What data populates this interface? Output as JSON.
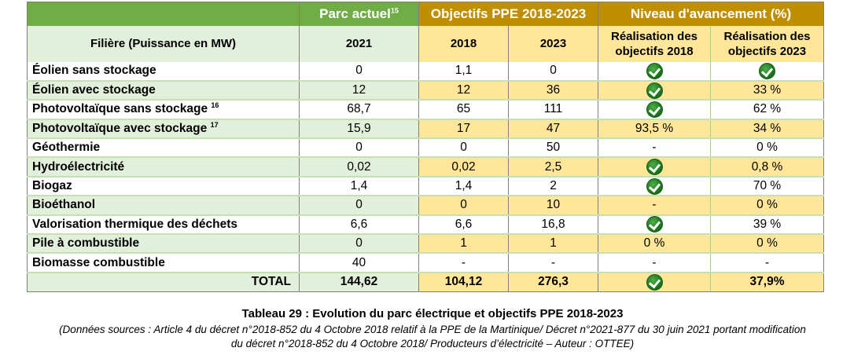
{
  "table": {
    "header_groups": {
      "parc_actuel": "Parc actuel",
      "parc_actuel_sup": "15",
      "objectifs": "Objectifs PPE 2018-2023",
      "niveau": "Niveau d'avancement (%)"
    },
    "subheaders": {
      "filiere": "Filière (Puissance en MW)",
      "y2021": "2021",
      "y2018": "2018",
      "y2023": "2023",
      "real2018_line1": "Réalisation des",
      "real2018_line2": "objectifs 2018",
      "real2023_line1": "Réalisation des",
      "real2023_line2": "objectifs 2023"
    },
    "rows": [
      {
        "name": "Éolien sans stockage",
        "sup": "",
        "v2021": "0",
        "obj2018": "1,1",
        "obj2023": "0",
        "real2018": "check",
        "real2023": "check"
      },
      {
        "name": "Éolien avec stockage",
        "sup": "",
        "v2021": "12",
        "obj2018": "12",
        "obj2023": "36",
        "real2018": "check",
        "real2023": "33 %"
      },
      {
        "name": "Photovoltaïque sans stockage",
        "sup": "16",
        "v2021": "68,7",
        "obj2018": "65",
        "obj2023": "111",
        "real2018": "check",
        "real2023": "62 %"
      },
      {
        "name": "Photovoltaïque avec stockage",
        "sup": "17",
        "v2021": "15,9",
        "obj2018": "17",
        "obj2023": "47",
        "real2018": "93,5 %",
        "real2023": "34 %"
      },
      {
        "name": "Géothermie",
        "sup": "",
        "v2021": "0",
        "obj2018": "0",
        "obj2023": "50",
        "real2018": "-",
        "real2023": "0 %"
      },
      {
        "name": "Hydroélectricité",
        "sup": "",
        "v2021": "0,02",
        "obj2018": "0,02",
        "obj2023": "2,5",
        "real2018": "check",
        "real2023": "0,8 %"
      },
      {
        "name": "Biogaz",
        "sup": "",
        "v2021": "1,4",
        "obj2018": "1,4",
        "obj2023": "2",
        "real2018": "check",
        "real2023": "70 %"
      },
      {
        "name": "Bioéthanol",
        "sup": "",
        "v2021": "0",
        "obj2018": "0",
        "obj2023": "10",
        "real2018": "-",
        "real2023": "0 %"
      },
      {
        "name": "Valorisation thermique des déchets",
        "sup": "",
        "v2021": "6,6",
        "obj2018": "6,6",
        "obj2023": "16,8",
        "real2018": "check",
        "real2023": "39 %"
      },
      {
        "name": "Pile à combustible",
        "sup": "",
        "v2021": "0",
        "obj2018": "1",
        "obj2023": "1",
        "real2018": "0 %",
        "real2023": "0 %"
      },
      {
        "name": "Biomasse combustible",
        "sup": "",
        "v2021": "40",
        "obj2018": "-",
        "obj2023": "-",
        "real2018": "-",
        "real2023": "-"
      }
    ],
    "total": {
      "name": "TOTAL",
      "v2021": "144,62",
      "obj2018": "104,12",
      "obj2023": "276,3",
      "real2018": "check",
      "real2023": "37,9%"
    }
  },
  "caption": {
    "title": "Tableau 29  : Evolution du parc électrique et objectifs PPE 2018-2023",
    "source_line1": "(Données sources : Article 4 du décret n°2018-852 du 4 Octobre 2018 relatif à la PPE de la Martinique/ Décret n°2021-877 du 30 juin 2021 portant modification",
    "source_line2": "du décret n°2018-852 du 4 Octobre 2018/ Producteurs d’électricité – Auteur : OTTEE)"
  },
  "icons": {
    "check": "check-circle-icon"
  },
  "colors": {
    "green_header": "#70ad47",
    "gold_header": "#bf8f00",
    "light_green": "#e2efda",
    "light_yellow": "#ffe699",
    "check_green": "#1e7a1e"
  }
}
